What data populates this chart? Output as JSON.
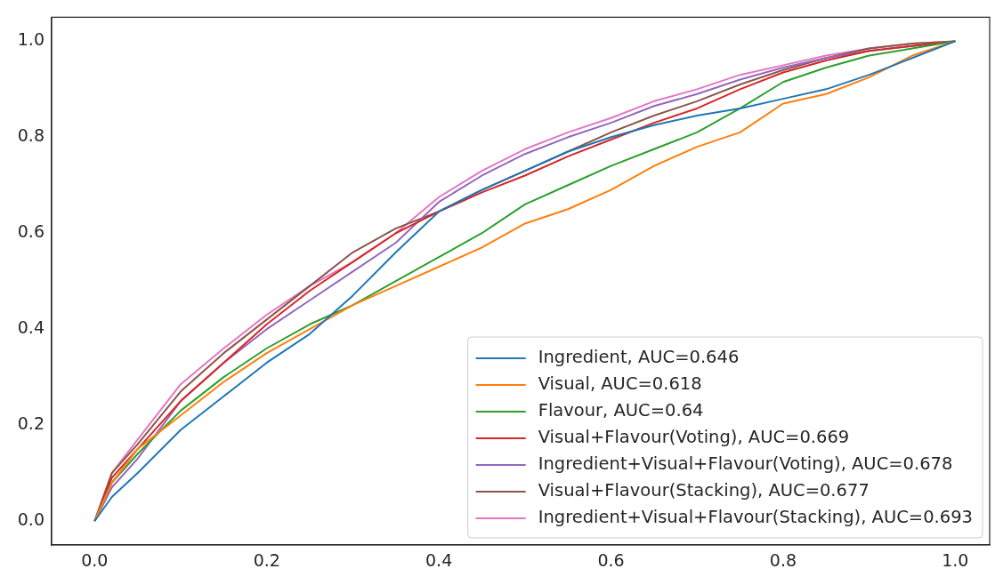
{
  "chart_data": {
    "type": "line",
    "x": [
      0,
      0.02,
      0.05,
      0.1,
      0.15,
      0.2,
      0.25,
      0.3,
      0.35,
      0.4,
      0.45,
      0.5,
      0.55,
      0.6,
      0.65,
      0.7,
      0.75,
      0.8,
      0.85,
      0.9,
      0.95,
      1
    ],
    "series": [
      {
        "name": "Ingredient, AUC=0.646",
        "color": "#1f77b4",
        "values": [
          0,
          0.05,
          0.1,
          0.19,
          0.26,
          0.33,
          0.39,
          0.47,
          0.56,
          0.645,
          0.69,
          0.73,
          0.77,
          0.8,
          0.825,
          0.845,
          0.86,
          0.88,
          0.9,
          0.93,
          0.965,
          1
        ]
      },
      {
        "name": "Visual, AUC=0.618",
        "color": "#ff7f0e",
        "values": [
          0,
          0.08,
          0.15,
          0.22,
          0.29,
          0.35,
          0.4,
          0.45,
          0.49,
          0.53,
          0.57,
          0.62,
          0.65,
          0.69,
          0.74,
          0.78,
          0.81,
          0.87,
          0.89,
          0.925,
          0.97,
          1
        ]
      },
      {
        "name": "Flavour, AUC=0.64",
        "color": "#2ca02c",
        "values": [
          0,
          0.08,
          0.14,
          0.23,
          0.3,
          0.36,
          0.41,
          0.45,
          0.5,
          0.55,
          0.6,
          0.66,
          0.7,
          0.74,
          0.775,
          0.81,
          0.86,
          0.915,
          0.945,
          0.97,
          0.985,
          1
        ]
      },
      {
        "name": "Visual+Flavour(Voting), AUC=0.669",
        "color": "#d62728",
        "values": [
          0,
          0.09,
          0.15,
          0.25,
          0.33,
          0.41,
          0.48,
          0.54,
          0.6,
          0.645,
          0.685,
          0.72,
          0.76,
          0.795,
          0.83,
          0.86,
          0.9,
          0.935,
          0.96,
          0.98,
          0.99,
          1
        ]
      },
      {
        "name": "Ingredient+Visual+Flavour(Voting), AUC=0.678",
        "color": "#9467bd",
        "values": [
          0,
          0.07,
          0.13,
          0.25,
          0.33,
          0.4,
          0.46,
          0.52,
          0.58,
          0.665,
          0.72,
          0.765,
          0.8,
          0.83,
          0.865,
          0.89,
          0.92,
          0.945,
          0.965,
          0.98,
          0.99,
          1
        ]
      },
      {
        "name": "Visual+Flavour(Stacking), AUC=0.677",
        "color": "#8c564b",
        "values": [
          0,
          0.1,
          0.16,
          0.27,
          0.35,
          0.42,
          0.49,
          0.56,
          0.61,
          0.645,
          0.69,
          0.73,
          0.77,
          0.81,
          0.845,
          0.875,
          0.91,
          0.94,
          0.965,
          0.985,
          0.995,
          1
        ]
      },
      {
        "name": "Ingredient+Visual+Flavour(Stacking), AUC=0.693",
        "color": "#e377c2",
        "values": [
          0,
          0.1,
          0.17,
          0.285,
          0.36,
          0.43,
          0.49,
          0.54,
          0.6,
          0.675,
          0.73,
          0.775,
          0.81,
          0.84,
          0.875,
          0.9,
          0.93,
          0.95,
          0.97,
          0.985,
          0.995,
          1
        ]
      }
    ],
    "xlim": [
      -0.05,
      1.04
    ],
    "ylim": [
      -0.05,
      1.05
    ],
    "xticks": [
      {
        "value": 0,
        "label": "0.0"
      },
      0.2,
      0.4,
      0.6,
      0.8,
      {
        "value": 1,
        "label": "1.0"
      }
    ],
    "yticks": [
      {
        "value": 0,
        "label": "0.0"
      },
      0.2,
      0.4,
      0.6,
      0.8,
      {
        "value": 1,
        "label": "1.0"
      }
    ],
    "grid": false,
    "legend": "bottom right",
    "marker": "none",
    "line_style": "solid"
  }
}
